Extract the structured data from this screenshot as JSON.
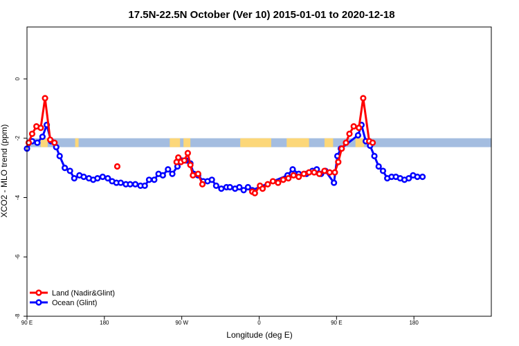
{
  "chart_data": {
    "type": "line",
    "title": "17.5N-22.5N October (Ver 10)   2015-01-01 to 2020-12-18",
    "xlabel": "Longitude (deg E)",
    "ylabel": "XCO2 - MLO trend (ppm)",
    "xlim": [
      -90,
      180
    ],
    "ylim": [
      -8,
      1.75
    ],
    "x_ticks": [
      {
        "value": -90,
        "label": "90 E"
      },
      {
        "value": -45,
        "label": "180"
      },
      {
        "value": 0,
        "label": "90 W"
      },
      {
        "value": 45,
        "label": "0"
      },
      {
        "value": 90,
        "label": "90 E"
      },
      {
        "value": 135,
        "label": "180"
      }
    ],
    "y_ticks": [
      {
        "value": 0,
        "label": "0"
      },
      {
        "value": -2,
        "label": "-2"
      },
      {
        "value": -4,
        "label": "-4"
      },
      {
        "value": -6,
        "label": "-6"
      },
      {
        "value": -8,
        "label": "-8"
      }
    ],
    "grid": false,
    "legend_position": "bottom-left",
    "land_mask_band": {
      "y_range": [
        -2.3,
        -2.0
      ],
      "ocean_color": "#a4bde0",
      "land_color": "#fcd779",
      "land_x_ranges": [
        [
          -82,
          -78
        ],
        [
          -62,
          -60
        ],
        [
          -7,
          -1
        ],
        [
          1,
          5
        ],
        [
          34,
          52
        ],
        [
          61,
          74
        ],
        [
          83,
          88
        ],
        [
          101,
          106
        ]
      ]
    },
    "series": [
      {
        "name": "Land (Nadir&Glint)",
        "color": "#ff0000",
        "segments": [
          [
            [
              -89.0,
              -2.15
            ],
            [
              -87.0,
              -1.85
            ],
            [
              -84.5,
              -1.6
            ],
            [
              -82.0,
              -1.65
            ],
            [
              -79.5,
              -0.65
            ],
            [
              -76.5,
              -2.05
            ],
            [
              -74.0,
              -2.15
            ]
          ],
          [
            [
              -37.5,
              -2.95
            ]
          ],
          [
            [
              -3.0,
              -2.8
            ],
            [
              -2.0,
              -2.65
            ],
            [
              -0.5,
              -2.8
            ],
            [
              1.5,
              -2.75
            ],
            [
              3.5,
              -2.5
            ],
            [
              5.0,
              -2.9
            ],
            [
              6.5,
              -3.25
            ],
            [
              9.5,
              -3.2
            ],
            [
              12.0,
              -3.55
            ]
          ],
          [
            [
              41.0,
              -3.8
            ],
            [
              42.5,
              -3.85
            ],
            [
              45.5,
              -3.6
            ],
            [
              47.0,
              -3.7
            ],
            [
              50.0,
              -3.55
            ],
            [
              53.0,
              -3.45
            ],
            [
              56.0,
              -3.5
            ],
            [
              59.0,
              -3.4
            ],
            [
              62.0,
              -3.35
            ],
            [
              65.0,
              -3.25
            ],
            [
              68.0,
              -3.3
            ],
            [
              71.0,
              -3.2
            ],
            [
              74.0,
              -3.15
            ],
            [
              77.0,
              -3.15
            ],
            [
              80.0,
              -3.2
            ],
            [
              83.0,
              -3.1
            ],
            [
              86.0,
              -3.15
            ],
            [
              89.0,
              -3.15
            ],
            [
              91.0,
              -2.8
            ],
            [
              93.0,
              -2.35
            ],
            [
              95.5,
              -2.15
            ],
            [
              97.5,
              -1.85
            ],
            [
              100.0,
              -1.6
            ],
            [
              103.0,
              -1.65
            ],
            [
              105.5,
              -0.65
            ],
            [
              109.0,
              -2.1
            ],
            [
              111.0,
              -2.15
            ]
          ]
        ]
      },
      {
        "name": "Ocean (Glint)",
        "color": "#0000ff",
        "segments": [
          [
            [
              -90.0,
              -2.35
            ],
            [
              -87.0,
              -2.1
            ],
            [
              -84.0,
              -2.15
            ],
            [
              -81.0,
              -1.95
            ],
            [
              -78.5,
              -1.55
            ],
            [
              -76.0,
              -2.1
            ],
            [
              -73.0,
              -2.3
            ],
            [
              -71.0,
              -2.6
            ],
            [
              -68.0,
              -3.0
            ],
            [
              -65.0,
              -3.1
            ],
            [
              -62.5,
              -3.35
            ],
            [
              -59.5,
              -3.25
            ],
            [
              -57.0,
              -3.3
            ],
            [
              -54.0,
              -3.35
            ],
            [
              -51.5,
              -3.4
            ],
            [
              -49.0,
              -3.35
            ],
            [
              -46.0,
              -3.3
            ],
            [
              -43.0,
              -3.35
            ],
            [
              -40.5,
              -3.45
            ],
            [
              -38.0,
              -3.5
            ],
            [
              -35.5,
              -3.5
            ],
            [
              -32.5,
              -3.55
            ],
            [
              -30.0,
              -3.55
            ],
            [
              -27.0,
              -3.55
            ],
            [
              -24.0,
              -3.6
            ],
            [
              -21.5,
              -3.6
            ],
            [
              -19.0,
              -3.4
            ],
            [
              -16.0,
              -3.4
            ],
            [
              -13.5,
              -3.2
            ],
            [
              -11.0,
              -3.25
            ],
            [
              -8.0,
              -3.05
            ],
            [
              -5.5,
              -3.2
            ],
            [
              -2.5,
              -2.95
            ],
            [
              0.0,
              -2.75
            ],
            [
              2.5,
              -2.75
            ],
            [
              5.0,
              -2.85
            ],
            [
              7.0,
              -3.2
            ],
            [
              9.5,
              -3.25
            ],
            [
              12.5,
              -3.45
            ],
            [
              15.0,
              -3.45
            ],
            [
              17.5,
              -3.4
            ],
            [
              20.0,
              -3.6
            ],
            [
              23.0,
              -3.7
            ],
            [
              26.0,
              -3.65
            ],
            [
              28.0,
              -3.65
            ],
            [
              31.0,
              -3.7
            ],
            [
              33.5,
              -3.65
            ],
            [
              36.0,
              -3.75
            ],
            [
              38.5,
              -3.65
            ],
            [
              41.0,
              -3.75
            ],
            [
              61.5,
              -3.25
            ],
            [
              64.5,
              -3.05
            ],
            [
              68.0,
              -3.2
            ],
            [
              72.5,
              -3.2
            ],
            [
              76.0,
              -3.1
            ],
            [
              78.5,
              -3.05
            ],
            [
              81.0,
              -3.2
            ],
            [
              83.5,
              -3.1
            ],
            [
              88.5,
              -3.5
            ],
            [
              90.5,
              -2.6
            ],
            [
              92.5,
              -2.35
            ],
            [
              102.5,
              -1.9
            ],
            [
              104.5,
              -1.55
            ],
            [
              107.0,
              -2.1
            ],
            [
              109.5,
              -2.25
            ],
            [
              112.0,
              -2.6
            ],
            [
              114.5,
              -2.95
            ],
            [
              117.0,
              -3.1
            ],
            [
              119.5,
              -3.35
            ],
            [
              122.0,
              -3.3
            ],
            [
              124.5,
              -3.3
            ],
            [
              127.0,
              -3.35
            ],
            [
              129.5,
              -3.4
            ],
            [
              132.0,
              -3.35
            ],
            [
              134.5,
              -3.25
            ],
            [
              137.0,
              -3.3
            ],
            [
              140.0,
              -3.3
            ]
          ]
        ]
      }
    ]
  }
}
